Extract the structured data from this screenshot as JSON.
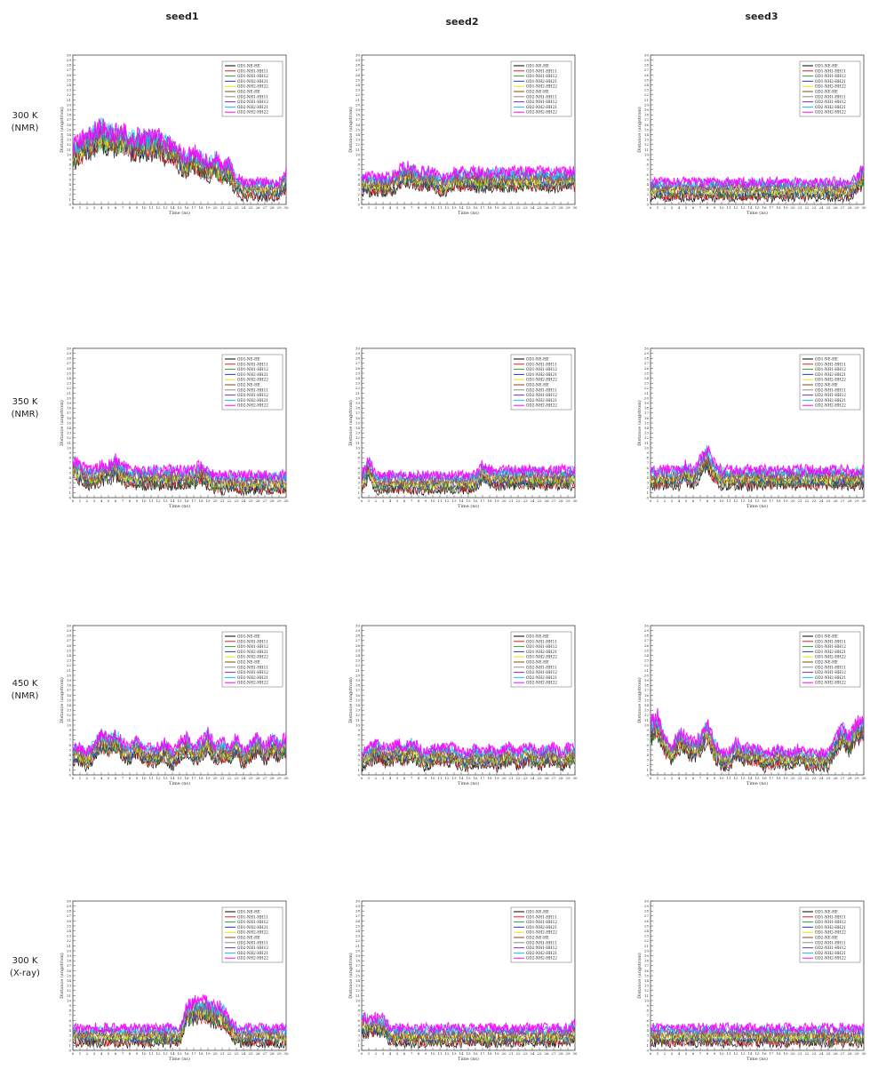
{
  "columns": [
    "seed1",
    "seed2",
    "seed3"
  ],
  "rows": [
    {
      "line1": "300 K",
      "line2": "(NMR)"
    },
    {
      "line1": "350 K",
      "line2": "(NMR)"
    },
    {
      "line1": "450 K",
      "line2": "(NMR)"
    },
    {
      "line1": "300 K",
      "line2": "(X-ray)"
    }
  ],
  "axis": {
    "xlabel": "Time (ns)",
    "ylabel": "Distance (angstrom)",
    "xticks": [
      0,
      1,
      2,
      3,
      4,
      5,
      6,
      7,
      8,
      9,
      10,
      11,
      12,
      13,
      14,
      15,
      16,
      17,
      18,
      19,
      20,
      21,
      22,
      23,
      24,
      25,
      26,
      27,
      28,
      29,
      30
    ],
    "yticks": [
      0,
      1,
      2,
      3,
      4,
      5,
      6,
      7,
      8,
      9,
      10,
      11,
      12,
      13,
      14,
      15,
      16,
      17,
      18,
      19,
      20,
      21,
      22,
      23,
      24,
      25,
      26,
      27,
      28,
      29,
      30
    ]
  },
  "series_colors": [
    "#000000",
    "#e41a1c",
    "#2ca02c",
    "#1f3fd0",
    "#e8e800",
    "#8b4513",
    "#888888",
    "#7b2fbf",
    "#00c8e8",
    "#ff00ff"
  ],
  "chart_data": [
    {
      "panel": "300K-NMR-seed1",
      "type": "line",
      "xlim": [
        0,
        30
      ],
      "ylim": [
        0,
        30
      ],
      "legend": "top-right",
      "legend_entries": [
        "OD1-NE-HE",
        "OD1-NH1-HH11",
        "OD1-NH1-HH12",
        "OD1-NH2-HH21",
        "OD1-NH2-HH22",
        "OD2-NE-HE",
        "OD2-NH1-HH11",
        "OD2-NH1-HH12",
        "OD2-NH2-HH21",
        "OD2-NH2-HH22"
      ],
      "x": [
        0,
        1,
        2,
        3,
        4,
        5,
        6,
        7,
        8,
        9,
        10,
        11,
        12,
        13,
        14,
        15,
        16,
        17,
        18,
        19,
        20,
        21,
        22,
        23,
        24,
        25,
        26,
        27,
        28,
        29,
        30
      ],
      "series": [
        {
          "values": [
            10,
            11,
            12,
            13,
            14,
            13,
            13,
            13,
            12,
            12,
            12,
            12,
            12,
            11,
            11,
            9,
            8,
            9,
            8,
            7,
            8,
            6,
            7,
            4,
            3,
            3,
            3,
            3,
            3,
            3,
            5
          ]
        }
      ]
    },
    {
      "panel": "300K-NMR-seed2",
      "type": "line",
      "xlim": [
        0,
        30
      ],
      "ylim": [
        0,
        30
      ],
      "legend": "top-right",
      "legend_entries": [
        "OD1-NE-HE",
        "OD1-NH1-HH11",
        "OD1-NH1-HH12",
        "OD1-NH2-HH21",
        "OD1-NH2-HH22",
        "OD2-NE-HE",
        "OD2-NH1-HH11",
        "OD2-NH1-HH12",
        "OD2-NH2-HH21",
        "OD2-NH2-HH22"
      ],
      "x": [
        0,
        1,
        2,
        3,
        4,
        5,
        6,
        7,
        8,
        9,
        10,
        11,
        12,
        13,
        14,
        15,
        16,
        17,
        18,
        19,
        20,
        21,
        22,
        23,
        24,
        25,
        26,
        27,
        28,
        29,
        30
      ],
      "series": [
        {
          "values": [
            4,
            4,
            4,
            4,
            4,
            5,
            6,
            6,
            5,
            5,
            5,
            4,
            4,
            5,
            5,
            5,
            5,
            5,
            5,
            5,
            5,
            5,
            5,
            5,
            5,
            5,
            5,
            5,
            5,
            5,
            5
          ]
        }
      ]
    },
    {
      "panel": "300K-NMR-seed3",
      "type": "line",
      "xlim": [
        0,
        30
      ],
      "ylim": [
        0,
        30
      ],
      "legend": "top-right",
      "legend_entries": [
        "OD1-NE-HE",
        "OD1-NH1-HH11",
        "OD1-NH1-HH12",
        "OD1-NH2-HH21",
        "OD1-NH2-HH22",
        "OD2-NE-HE",
        "OD2-NH1-HH11",
        "OD2-NH1-HH12",
        "OD2-NH2-HH21",
        "OD2-NH2-HH22"
      ],
      "x": [
        0,
        1,
        2,
        3,
        4,
        5,
        6,
        7,
        8,
        9,
        10,
        11,
        12,
        13,
        14,
        15,
        16,
        17,
        18,
        19,
        20,
        21,
        22,
        23,
        24,
        25,
        26,
        27,
        28,
        29,
        30
      ],
      "series": [
        {
          "values": [
            3,
            3,
            3,
            3,
            3,
            3,
            3,
            3,
            3,
            3,
            3,
            3,
            3,
            3,
            3,
            3,
            3,
            3,
            3,
            3,
            3,
            3,
            3,
            3,
            3,
            3,
            3,
            3,
            3,
            4,
            6
          ]
        }
      ]
    },
    {
      "panel": "350K-NMR-seed1",
      "type": "line",
      "xlim": [
        0,
        30
      ],
      "ylim": [
        0,
        30
      ],
      "legend": "top-right",
      "legend_entries": [
        "OD1-NE-HE",
        "OD1-NH1-HH11",
        "OD1-NH1-HH12",
        "OD1-NH2-HH21",
        "OD1-NH2-HH22",
        "OD2-NE-HE",
        "OD2-NH1-HH11",
        "OD2-NH1-HH12",
        "OD2-NH2-HH21",
        "OD2-NH2-HH22"
      ],
      "x": [
        0,
        1,
        2,
        3,
        4,
        5,
        6,
        7,
        8,
        9,
        10,
        11,
        12,
        13,
        14,
        15,
        16,
        17,
        18,
        19,
        20,
        21,
        22,
        23,
        24,
        25,
        26,
        27,
        28,
        29,
        30
      ],
      "series": [
        {
          "values": [
            6,
            5,
            4,
            4,
            5,
            5,
            6,
            5,
            4,
            4,
            4,
            4,
            4,
            4,
            4,
            4,
            4,
            4,
            5,
            4,
            3,
            3,
            3,
            3,
            3,
            3,
            3,
            3,
            3,
            3,
            3
          ]
        }
      ]
    },
    {
      "panel": "350K-NMR-seed2",
      "type": "line",
      "xlim": [
        0,
        30
      ],
      "ylim": [
        0,
        30
      ],
      "legend": "top-right",
      "legend_entries": [
        "OD1-NE-HE",
        "OD1-NH1-HH11",
        "OD1-NH1-HH12",
        "OD1-NH2-HH21",
        "OD1-NH2-HH22",
        "OD2-NE-HE",
        "OD2-NH1-HH11",
        "OD2-NH1-HH12",
        "OD2-NH2-HH21",
        "OD2-NH2-HH22"
      ],
      "x": [
        0,
        1,
        2,
        3,
        4,
        5,
        6,
        7,
        8,
        9,
        10,
        11,
        12,
        13,
        14,
        15,
        16,
        17,
        18,
        19,
        20,
        21,
        22,
        23,
        24,
        25,
        26,
        27,
        28,
        29,
        30
      ],
      "series": [
        {
          "values": [
            3,
            6,
            3,
            3,
            3,
            3,
            3,
            3,
            3,
            3,
            3,
            3,
            3,
            3,
            3,
            3,
            3,
            5,
            4,
            4,
            4,
            4,
            4,
            4,
            4,
            4,
            4,
            4,
            4,
            4,
            4
          ]
        }
      ]
    },
    {
      "panel": "350K-NMR-seed3",
      "type": "line",
      "xlim": [
        0,
        30
      ],
      "ylim": [
        0,
        30
      ],
      "legend": "top-right",
      "legend_entries": [
        "OD1-NE-HE",
        "OD1-NH1-HH11",
        "OD1-NH1-HH12",
        "OD1-NH2-HH21",
        "OD1-NH2-HH22",
        "OD2-NE-HE",
        "OD2-NH1-HH11",
        "OD2-NH1-HH12",
        "OD2-NH2-HH21",
        "OD2-NH2-HH22"
      ],
      "x": [
        0,
        1,
        2,
        3,
        4,
        5,
        6,
        7,
        8,
        9,
        10,
        11,
        12,
        13,
        14,
        15,
        16,
        17,
        18,
        19,
        20,
        21,
        22,
        23,
        24,
        25,
        26,
        27,
        28,
        29,
        30
      ],
      "series": [
        {
          "values": [
            4,
            4,
            4,
            4,
            4,
            5,
            4,
            6,
            8,
            5,
            4,
            4,
            4,
            4,
            4,
            4,
            4,
            4,
            4,
            4,
            4,
            4,
            4,
            4,
            4,
            4,
            4,
            4,
            4,
            4,
            4
          ]
        }
      ]
    },
    {
      "panel": "450K-NMR-seed1",
      "type": "line",
      "xlim": [
        0,
        30
      ],
      "ylim": [
        0,
        30
      ],
      "legend": "top-right",
      "legend_entries": [
        "OD1-NE-HE",
        "OD1-NH1-HH11",
        "OD1-NH1-HH12",
        "OD1-NH2-HH21",
        "OD1-NH2-HH22",
        "OD2-NE-HE",
        "OD2-NH1-HH11",
        "OD2-NH1-HH12",
        "OD2-NH2-HH21",
        "OD2-NH2-HH22"
      ],
      "x": [
        0,
        1,
        2,
        3,
        4,
        5,
        6,
        7,
        8,
        9,
        10,
        11,
        12,
        13,
        14,
        15,
        16,
        17,
        18,
        19,
        20,
        21,
        22,
        23,
        24,
        25,
        26,
        27,
        28,
        29,
        30
      ],
      "series": [
        {
          "values": [
            4,
            4,
            3,
            5,
            7,
            6,
            7,
            5,
            4,
            6,
            4,
            4,
            4,
            5,
            3,
            5,
            6,
            4,
            5,
            7,
            4,
            5,
            4,
            6,
            3,
            5,
            6,
            4,
            6,
            5,
            6
          ]
        }
      ]
    },
    {
      "panel": "450K-NMR-seed2",
      "type": "line",
      "xlim": [
        0,
        30
      ],
      "ylim": [
        0,
        30
      ],
      "legend": "top-right",
      "legend_entries": [
        "OD1-NE-HE",
        "OD1-NH1-HH11",
        "OD1-NH1-HH12",
        "OD1-NH2-HH21",
        "OD1-NH2-HH22",
        "OD2-NE-HE",
        "OD2-NH1-HH11",
        "OD2-NH1-HH12",
        "OD2-NH2-HH21",
        "OD2-NH2-HH22"
      ],
      "x": [
        0,
        1,
        2,
        3,
        4,
        5,
        6,
        7,
        8,
        9,
        10,
        11,
        12,
        13,
        14,
        15,
        16,
        17,
        18,
        19,
        20,
        21,
        22,
        23,
        24,
        25,
        26,
        27,
        28,
        29,
        30
      ],
      "series": [
        {
          "values": [
            3,
            4,
            5,
            4,
            4,
            5,
            4,
            5,
            4,
            3,
            4,
            4,
            4,
            4,
            3,
            3,
            4,
            3,
            4,
            3,
            4,
            4,
            3,
            4,
            4,
            3,
            4,
            4,
            3,
            4,
            4
          ]
        }
      ]
    },
    {
      "panel": "450K-NMR-seed3",
      "type": "line",
      "xlim": [
        0,
        30
      ],
      "ylim": [
        0,
        30
      ],
      "legend": "top-right",
      "legend_entries": [
        "OD1-NE-HE",
        "OD1-NH1-HH11",
        "OD1-NH1-HH12",
        "OD1-NH2-HH21",
        "OD1-NH2-HH22",
        "OD2-NE-HE",
        "OD2-NH1-HH11",
        "OD2-NH1-HH12",
        "OD2-NH2-HH21",
        "OD2-NH2-HH22"
      ],
      "x": [
        0,
        1,
        2,
        3,
        4,
        5,
        6,
        7,
        8,
        9,
        10,
        11,
        12,
        13,
        14,
        15,
        16,
        17,
        18,
        19,
        20,
        21,
        22,
        23,
        24,
        25,
        26,
        27,
        28,
        29,
        30
      ],
      "series": [
        {
          "values": [
            9,
            10,
            6,
            4,
            7,
            6,
            5,
            6,
            9,
            5,
            3,
            3,
            5,
            4,
            4,
            4,
            3,
            3,
            4,
            3,
            3,
            4,
            3,
            3,
            3,
            3,
            6,
            8,
            6,
            9,
            9
          ]
        }
      ]
    },
    {
      "panel": "300K-Xray-seed1",
      "type": "line",
      "xlim": [
        0,
        30
      ],
      "ylim": [
        0,
        30
      ],
      "legend": "top-right",
      "legend_entries": [
        "OD1-NE-HE",
        "OD1-NH1-HH11",
        "OD1-NH1-HH12",
        "OD1-NH2-HH21",
        "OD1-NH2-HH22",
        "OD2-NE-HE",
        "OD2-NH1-HH11",
        "OD2-NH1-HH12",
        "OD2-NH2-HH21",
        "OD2-NH2-HH22"
      ],
      "x": [
        0,
        1,
        2,
        3,
        4,
        5,
        6,
        7,
        8,
        9,
        10,
        11,
        12,
        13,
        14,
        15,
        16,
        17,
        18,
        19,
        20,
        21,
        22,
        23,
        24,
        25,
        26,
        27,
        28,
        29,
        30
      ],
      "series": [
        {
          "values": [
            3,
            3,
            3,
            3,
            3,
            3,
            3,
            3,
            3,
            3,
            3,
            3,
            3,
            3,
            3,
            3,
            7,
            8,
            8,
            8,
            7,
            7,
            5,
            3,
            3,
            3,
            3,
            3,
            3,
            3,
            3
          ]
        }
      ]
    },
    {
      "panel": "300K-Xray-seed2",
      "type": "line",
      "xlim": [
        0,
        30
      ],
      "ylim": [
        0,
        30
      ],
      "legend": "top-right",
      "legend_entries": [
        "OD1-NE-HE",
        "OD1-NH1-HH11",
        "OD1-NH1-HH12",
        "OD1-NH2-HH21",
        "OD1-NH2-HH22",
        "OD2-NE-HE",
        "OD2-NH1-HH11",
        "OD2-NH1-HH12",
        "OD2-NH2-HH21",
        "OD2-NH2-HH22"
      ],
      "x": [
        0,
        1,
        2,
        3,
        4,
        5,
        6,
        7,
        8,
        9,
        10,
        11,
        12,
        13,
        14,
        15,
        16,
        17,
        18,
        19,
        20,
        21,
        22,
        23,
        24,
        25,
        26,
        27,
        28,
        29,
        30
      ],
      "series": [
        {
          "values": [
            5,
            5,
            5,
            5,
            3,
            3,
            3,
            3,
            3,
            3,
            3,
            3,
            3,
            3,
            3,
            3,
            3,
            3,
            3,
            3,
            3,
            3,
            3,
            3,
            3,
            3,
            3,
            3,
            3,
            3,
            4
          ]
        }
      ]
    },
    {
      "panel": "300K-Xray-seed3",
      "type": "line",
      "xlim": [
        0,
        30
      ],
      "ylim": [
        0,
        30
      ],
      "legend": "top-right",
      "legend_entries": [
        "OD1-NE-HE",
        "OD1-NH1-HH11",
        "OD1-NH1-HH12",
        "OD1-NH2-HH21",
        "OD1-NH2-HH22",
        "OD2-NE-HE",
        "OD2-NH1-HH11",
        "OD2-NH1-HH12",
        "OD2-NH2-HH21",
        "OD2-NH2-HH22"
      ],
      "x": [
        0,
        1,
        2,
        3,
        4,
        5,
        6,
        7,
        8,
        9,
        10,
        11,
        12,
        13,
        14,
        15,
        16,
        17,
        18,
        19,
        20,
        21,
        22,
        23,
        24,
        25,
        26,
        27,
        28,
        29,
        30
      ],
      "series": [
        {
          "values": [
            3,
            3,
            3,
            3,
            3,
            3,
            3,
            3,
            3,
            3,
            3,
            3,
            3,
            3,
            3,
            3,
            3,
            3,
            3,
            3,
            3,
            3,
            3,
            3,
            3,
            3,
            3,
            3,
            3,
            3,
            3
          ]
        }
      ]
    }
  ]
}
